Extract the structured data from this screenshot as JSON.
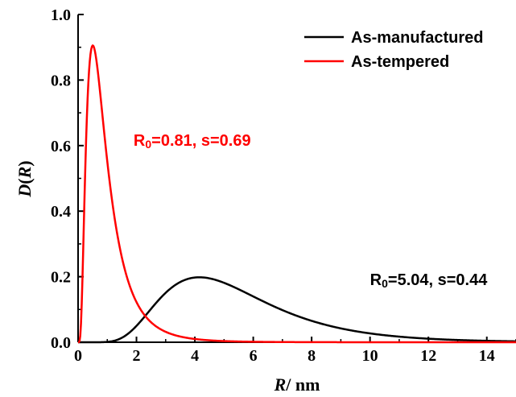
{
  "chart_data": {
    "type": "line",
    "title": "",
    "xlabel": {
      "var": "R",
      "unit": "/ nm"
    },
    "ylabel": {
      "var": "D",
      "paren_open": "(",
      "arg": "R",
      "paren_close": ")"
    },
    "xlim": [
      0,
      15
    ],
    "ylim": [
      0,
      1.0
    ],
    "xticks": [
      0,
      2,
      4,
      6,
      8,
      10,
      12,
      14
    ],
    "xtick_labels": [
      "0",
      "2",
      "4",
      "6",
      "8",
      "10",
      "12",
      "14"
    ],
    "yticks": [
      0.0,
      0.2,
      0.4,
      0.6,
      0.8,
      1.0
    ],
    "ytick_labels": [
      "0.0",
      "0.2",
      "0.4",
      "0.6",
      "0.8",
      "1.0"
    ],
    "grid": false,
    "legend_position": "top-right",
    "series": [
      {
        "name": "As-manufactured",
        "color": "#000000",
        "distribution": "lognormal",
        "R0": 5.04,
        "s": 0.44,
        "x": [
          0,
          1,
          1.5,
          2,
          2.5,
          3,
          3.5,
          4,
          4.25,
          4.5,
          5,
          5.5,
          6,
          6.5,
          7,
          8,
          9,
          10,
          11,
          12,
          13,
          14,
          15
        ],
        "y": [
          0,
          0.0006,
          0.012,
          0.042,
          0.086,
          0.13,
          0.168,
          0.193,
          0.197,
          0.196,
          0.185,
          0.166,
          0.143,
          0.121,
          0.1,
          0.066,
          0.041,
          0.025,
          0.015,
          0.009,
          0.005,
          0.003,
          0.002
        ]
      },
      {
        "name": "As-tempered",
        "color": "#ff0000",
        "distribution": "lognormal",
        "R0": 0.81,
        "s": 0.69,
        "x": [
          0,
          0.1,
          0.2,
          0.3,
          0.4,
          0.5,
          0.6,
          0.7,
          0.8,
          1.0,
          1.2,
          1.5,
          2,
          2.5,
          3,
          4,
          5,
          6,
          8,
          10,
          12,
          15
        ],
        "y": [
          0,
          0.09,
          0.42,
          0.69,
          0.82,
          0.855,
          0.84,
          0.79,
          0.72,
          0.56,
          0.42,
          0.26,
          0.12,
          0.06,
          0.035,
          0.013,
          0.006,
          0.003,
          0.001,
          0.0004,
          0.0002,
          0.0001
        ]
      }
    ],
    "annotations": [
      {
        "series": "As-tempered",
        "prefix": "R",
        "sub": "0",
        "text": "=0.81, s=0.69",
        "color": "#ff0000",
        "x": 1.9,
        "y": 0.6
      },
      {
        "series": "As-manufactured",
        "prefix": "R",
        "sub": "0",
        "text": "=5.04, s=0.44",
        "color": "#000000",
        "x": 10.0,
        "y": 0.175
      }
    ]
  }
}
